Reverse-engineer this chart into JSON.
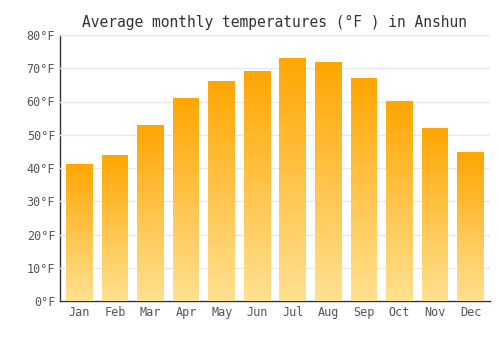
{
  "title": "Average monthly temperatures (°F ) in Anshun",
  "months": [
    "Jan",
    "Feb",
    "Mar",
    "Apr",
    "May",
    "Jun",
    "Jul",
    "Aug",
    "Sep",
    "Oct",
    "Nov",
    "Dec"
  ],
  "values": [
    41.3,
    44.0,
    52.9,
    61.0,
    66.3,
    69.3,
    73.0,
    71.8,
    67.0,
    60.2,
    51.9,
    44.8
  ],
  "bar_color_top": "#FFA500",
  "bar_color_bottom": "#FFE090",
  "background_color": "#ffffff",
  "grid_color": "#e8e8e8",
  "ylim": [
    0,
    80
  ],
  "yticks": [
    0,
    10,
    20,
    30,
    40,
    50,
    60,
    70,
    80
  ],
  "title_fontsize": 10.5,
  "tick_fontsize": 8.5,
  "font_family": "monospace"
}
